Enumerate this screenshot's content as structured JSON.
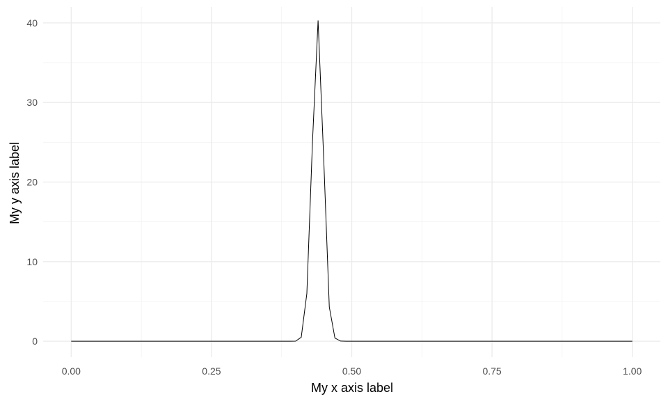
{
  "chart_data": {
    "type": "line",
    "title": "",
    "xlabel": "My x axis label",
    "ylabel": "My y axis label",
    "xlim": [
      -0.05,
      1.05
    ],
    "ylim": [
      -2,
      42
    ],
    "x_ticks": [
      0.0,
      0.25,
      0.5,
      0.75,
      1.0
    ],
    "x_tick_labels": [
      "0.00",
      "0.25",
      "0.50",
      "0.75",
      "1.00"
    ],
    "x_minor_ticks": [
      0.125,
      0.375,
      0.625,
      0.875
    ],
    "y_ticks": [
      0,
      10,
      20,
      30,
      40
    ],
    "y_tick_labels": [
      "0",
      "10",
      "20",
      "30",
      "40"
    ],
    "y_minor_ticks": [
      5,
      15,
      25,
      35
    ],
    "grid": true,
    "legend": "none",
    "line_color": "#000000",
    "series": [
      {
        "x": [
          0.0,
          0.39,
          0.4,
          0.41,
          0.42,
          0.43,
          0.44,
          0.45,
          0.46,
          0.47,
          0.48,
          0.49,
          0.5,
          1.0
        ],
        "values": [
          0,
          0,
          0.01,
          0.5,
          6,
          25,
          40.3,
          23,
          4.3,
          0.4,
          0.02,
          0,
          0,
          0
        ]
      }
    ]
  }
}
